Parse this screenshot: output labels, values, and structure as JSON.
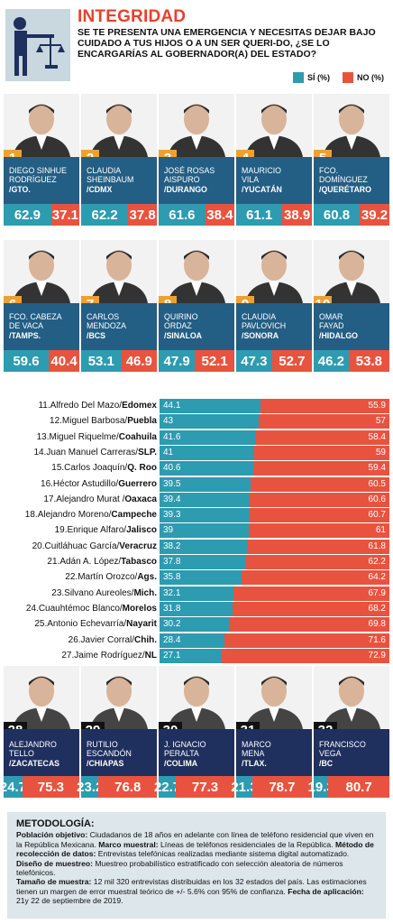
{
  "header": {
    "title": "INTEGRIDAD",
    "question": "SE TE PRESENTA UNA EMERGENCIA Y NECESITAS DEJAR BAJO CUIDADO A TUS HIJOS O A UN SER QUERI-DO, ¿SE LO ENCARGARÍAS AL GOBERNADOR(A) DEL ESTADO?",
    "legend_si": "SÍ (%)",
    "legend_no": "NO (%)"
  },
  "colors": {
    "si": "#2d9bb0",
    "no": "#e8533f",
    "card_blue": "#235e84",
    "bottom_navy": "#1f2f5e",
    "num_orange": "#f0a030",
    "title_red": "#e8402c"
  },
  "chart_data": {
    "type": "bar",
    "series": [
      {
        "name": "SÍ (%)"
      },
      {
        "name": "NO (%)"
      }
    ],
    "top": [
      {
        "rank": "1",
        "line1": "DIEGO SINHUE",
        "line2": "RODRÍGUEZ",
        "state": "/GTO.",
        "si": "62.9",
        "no": "37.1"
      },
      {
        "rank": "2",
        "line1": "CLAUDIA",
        "line2": "SHEINBAUM",
        "state": "/CDMX",
        "si": "62.2",
        "no": "37.8"
      },
      {
        "rank": "3",
        "line1": "JOSÉ ROSAS",
        "line2": "AISPURO",
        "state": "/DURANGO",
        "si": "61.6",
        "no": "38.4"
      },
      {
        "rank": "4",
        "line1": "MAURICIO",
        "line2": "VILA",
        "state": "/YUCATÁN",
        "si": "61.1",
        "no": "38.9"
      },
      {
        "rank": "5",
        "line1": "FCO.",
        "line2": "DOMÍNGUEZ",
        "state": "/QUERÉTARO",
        "si": "60.8",
        "no": "39.2"
      },
      {
        "rank": "6",
        "line1": "FCO. CABEZA",
        "line2": "DE VACA",
        "state": "/TAMPS.",
        "si": "59.6",
        "no": "40.4"
      },
      {
        "rank": "7",
        "line1": "CARLOS",
        "line2": "MENDOZA",
        "state": "/BCS",
        "si": "53.1",
        "no": "46.9"
      },
      {
        "rank": "8",
        "line1": "QUIRINO",
        "line2": "ORDAZ",
        "state": "/SINALOA",
        "si": "47.9",
        "no": "52.1"
      },
      {
        "rank": "9",
        "line1": "CLAUDIA",
        "line2": "PAVLOVICH",
        "state": "/SONORA",
        "si": "47.3",
        "no": "52.7"
      },
      {
        "rank": "10",
        "line1": "OMAR",
        "line2": "FAYAD",
        "state": "/HIDALGO",
        "si": "46.2",
        "no": "53.8"
      }
    ],
    "middle": [
      {
        "label": "11.Alfredo Del Mazo/",
        "state": "Edomex",
        "si": 44.1,
        "no": 55.9
      },
      {
        "label": "12.Miguel Barbosa/",
        "state": "Puebla",
        "si": 43,
        "no": 57
      },
      {
        "label": "13.Miguel Riquelme/",
        "state": "Coahuila",
        "si": 41.6,
        "no": 58.4
      },
      {
        "label": "14.Juan Manuel Carreras/",
        "state": "SLP.",
        "si": 41,
        "no": 59
      },
      {
        "label": "15.Carlos Joaquín/",
        "state": "Q. Roo",
        "si": 40.6,
        "no": 59.4
      },
      {
        "label": "16.Héctor Astudillo/",
        "state": "Guerrero",
        "si": 39.5,
        "no": 60.5
      },
      {
        "label": "17.Alejandro Murat /",
        "state": "Oaxaca",
        "si": 39.4,
        "no": 60.6
      },
      {
        "label": "18.Alejandro Moreno/",
        "state": "Campeche",
        "si": 39.3,
        "no": 60.7
      },
      {
        "label": "19.Enrique Alfaro/",
        "state": "Jalisco",
        "si": 39,
        "no": 61
      },
      {
        "label": "20.Cuitláhuac García/",
        "state": "Veracruz",
        "si": 38.2,
        "no": 61.8
      },
      {
        "label": "21.Adán A. López/",
        "state": "Tabasco",
        "si": 37.8,
        "no": 62.2
      },
      {
        "label": "22.Martín Orozco/",
        "state": "Ags.",
        "si": 35.8,
        "no": 64.2
      },
      {
        "label": "23.Silvano Aureoles/",
        "state": "Mich.",
        "si": 32.1,
        "no": 67.9
      },
      {
        "label": "24.Cuauhtémoc Blanco/",
        "state": "Morelos",
        "si": 31.8,
        "no": 68.2
      },
      {
        "label": "25.Antonio Echevarría/",
        "state": "Nayarit",
        "si": 30.2,
        "no": 69.8
      },
      {
        "label": "26.Javier Corral/",
        "state": "Chih.",
        "si": 28.4,
        "no": 71.6
      },
      {
        "label": "27.Jaime Rodríguez/",
        "state": "NL",
        "si": 27.1,
        "no": 72.9
      }
    ],
    "bottom": [
      {
        "rank": "28",
        "line1": "ALEJANDRO",
        "line2": "TELLO",
        "state": "/ZACATECAS",
        "si": "24.7",
        "no": "75.3"
      },
      {
        "rank": "29",
        "line1": "RUTILIO",
        "line2": "ESCANDÓN",
        "state": "/CHIAPAS",
        "si": "23.2",
        "no": "76.8"
      },
      {
        "rank": "30",
        "line1": "J. IGNACIO",
        "line2": "PERALTA",
        "state": "/COLIMA",
        "si": "22.7",
        "no": "77.3"
      },
      {
        "rank": "31",
        "line1": "MARCO",
        "line2": "MENA",
        "state": "/TLAX.",
        "si": "21.3",
        "no": "78.7"
      },
      {
        "rank": "32",
        "line1": "FRANCISCO",
        "line2": "VEGA",
        "state": "/BC",
        "si": "19.3",
        "no": "80.7"
      }
    ]
  },
  "methodology": {
    "title": "METODOLOGÍA:",
    "l1": "Población objetivo:",
    "t1": " Ciudadanos de 18 años en adelante con línea de teléfono residencial que viven en la República Mexicana. ",
    "l2": "Marco muestral:",
    "t2": " Líneas de teléfonos residenciales de la República. ",
    "l3": "Método de recolección de datos:",
    "t3": " Entrevistas telefónicas realizadas mediante sistema digital automatizado. ",
    "l4": "Diseño de muestreo:",
    "t4": " Muestreo probabilístico estratificado con selección aleatoria de números telefónicos.",
    "l5": "Tamaño de muestra:",
    "t5": " 12 mil 320 entrevistas distribuidas en los 32 estados del país. Las estimaciones tienen un margen de error muestral teórico de +/- 5.6% con 95% de confianza. ",
    "l6": "Fecha de aplicación:",
    "t6": " 21y 22 de septiembre de 2019."
  }
}
